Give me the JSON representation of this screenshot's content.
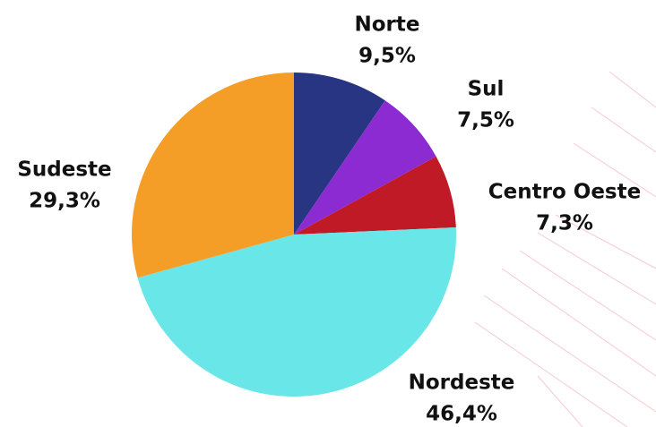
{
  "chart_data": {
    "type": "pie",
    "categories": [
      "Norte",
      "Sul",
      "Centro Oeste",
      "Nordeste",
      "Sudeste"
    ],
    "values": [
      9.5,
      7.5,
      7.3,
      46.4,
      29.3
    ],
    "value_labels": [
      "9,5%",
      "7,5%",
      "7,3%",
      "46,4%",
      "29,3%"
    ],
    "colors": [
      "#283583",
      "#8b2bd1",
      "#c01a27",
      "#69e6e8",
      "#f59e27"
    ]
  }
}
